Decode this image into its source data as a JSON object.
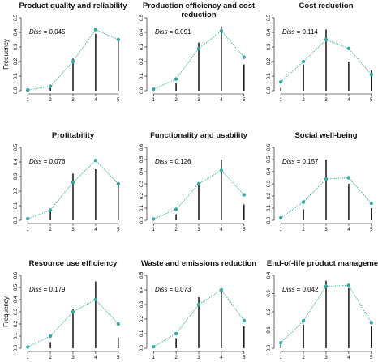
{
  "chart_data": [
    {
      "type": "line",
      "title": "Product quality and reliability",
      "ylabel": "Frequency",
      "annotation_label": "Diss",
      "annotation": "= 0.045",
      "x": [
        1,
        2,
        3,
        4,
        5
      ],
      "xlim": [
        0.85,
        5.15
      ],
      "xticks": [
        1,
        2,
        3,
        4,
        5
      ],
      "ylim": [
        0,
        0.5
      ],
      "yticks": [
        {
          "value": 0,
          "label": "0.0"
        },
        0.1,
        0.2,
        0.3,
        0.4,
        0.5
      ],
      "series": [
        {
          "mark": "spike",
          "color": "#000000",
          "values": [
            0,
            0.02,
            0.22,
            0.39,
            0.36
          ]
        },
        {
          "mark": "dotted-line",
          "color": "#36a89c",
          "values": [
            0.005,
            0.03,
            0.2,
            0.42,
            0.35
          ]
        }
      ]
    },
    {
      "type": "line",
      "title": "Production efficiency and cost reduction",
      "annotation_label": "Diss",
      "annotation": "= 0.091",
      "x": [
        1,
        2,
        3,
        4,
        5
      ],
      "xlim": [
        0.85,
        5.15
      ],
      "xticks": [
        1,
        2,
        3,
        4,
        5
      ],
      "ylim": [
        0,
        0.5
      ],
      "yticks": [
        {
          "value": 0,
          "label": "0.0"
        },
        0.1,
        0.2,
        0.3,
        0.4,
        0.5
      ],
      "series": [
        {
          "mark": "spike",
          "color": "#000000",
          "values": [
            0,
            0.05,
            0.33,
            0.44,
            0.18
          ]
        },
        {
          "mark": "dotted-line",
          "color": "#36a89c",
          "values": [
            0.01,
            0.08,
            0.29,
            0.41,
            0.23
          ]
        }
      ]
    },
    {
      "type": "line",
      "title": "Cost reduction",
      "annotation_label": "Diss",
      "annotation": "= 0.114",
      "x": [
        1,
        2,
        3,
        4,
        5
      ],
      "xlim": [
        0.85,
        5.15
      ],
      "xticks": [
        1,
        2,
        3,
        4,
        5
      ],
      "ylim": [
        0,
        0.5
      ],
      "yticks": [
        {
          "value": 0,
          "label": "0.0"
        },
        0.1,
        0.2,
        0.3,
        0.4,
        0.5
      ],
      "series": [
        {
          "mark": "spike",
          "color": "#000000",
          "values": [
            0.02,
            0.18,
            0.42,
            0.2,
            0.14
          ]
        },
        {
          "mark": "dotted-line",
          "color": "#36a89c",
          "values": [
            0.06,
            0.2,
            0.35,
            0.29,
            0.11
          ]
        }
      ]
    },
    {
      "type": "line",
      "title": "Profitability",
      "annotation_label": "Diss",
      "annotation": "= 0.076",
      "x": [
        1,
        2,
        3,
        4,
        5
      ],
      "xlim": [
        0.85,
        5.15
      ],
      "xticks": [
        1,
        2,
        3,
        4,
        5
      ],
      "ylim": [
        0,
        0.5
      ],
      "yticks": [
        {
          "value": 0,
          "label": "0.0"
        },
        0.1,
        0.2,
        0.3,
        0.4,
        0.5
      ],
      "series": [
        {
          "mark": "spike",
          "color": "#000000",
          "values": [
            0.02,
            0.06,
            0.32,
            0.35,
            0.24
          ]
        },
        {
          "mark": "dotted-line",
          "color": "#36a89c",
          "values": [
            0.01,
            0.07,
            0.26,
            0.41,
            0.25
          ]
        }
      ]
    },
    {
      "type": "line",
      "title": "Functionality and usability",
      "annotation_label": "Diss",
      "annotation": "= 0.126",
      "x": [
        1,
        2,
        3,
        4,
        5
      ],
      "xlim": [
        0.85,
        5.15
      ],
      "xticks": [
        1,
        2,
        3,
        4,
        5
      ],
      "ylim": [
        0,
        0.6
      ],
      "yticks": [
        {
          "value": 0,
          "label": "0.0"
        },
        0.1,
        0.2,
        0.3,
        0.4,
        0.5,
        0.6
      ],
      "series": [
        {
          "mark": "spike",
          "color": "#000000",
          "values": [
            0,
            0.05,
            0.29,
            0.5,
            0.13
          ]
        },
        {
          "mark": "dotted-line",
          "color": "#36a89c",
          "values": [
            0.01,
            0.09,
            0.3,
            0.41,
            0.21
          ]
        }
      ]
    },
    {
      "type": "line",
      "title": "Social well-being",
      "annotation_label": "Diss",
      "annotation": "= 0.157",
      "x": [
        1,
        2,
        3,
        4,
        5
      ],
      "xlim": [
        0.85,
        5.15
      ],
      "xticks": [
        1,
        2,
        3,
        4,
        5
      ],
      "ylim": [
        0,
        0.6
      ],
      "yticks": [
        {
          "value": 0,
          "label": "0.0"
        },
        0.1,
        0.2,
        0.3,
        0.4,
        0.5,
        0.6
      ],
      "series": [
        {
          "mark": "spike",
          "color": "#000000",
          "values": [
            0,
            0.09,
            0.5,
            0.3,
            0.1
          ]
        },
        {
          "mark": "dotted-line",
          "color": "#36a89c",
          "values": [
            0.02,
            0.15,
            0.34,
            0.35,
            0.14
          ]
        }
      ]
    },
    {
      "type": "line",
      "title": "Resource use efficiency",
      "ylabel": "Frequency",
      "annotation_label": "Diss",
      "annotation": "= 0.179",
      "x": [
        1,
        2,
        3,
        4,
        5
      ],
      "xlim": [
        0.85,
        5.15
      ],
      "xticks": [
        1,
        2,
        3,
        4,
        5
      ],
      "ylim": [
        0,
        0.6
      ],
      "yticks": [
        {
          "value": 0,
          "label": "0.0"
        },
        0.1,
        0.2,
        0.3,
        0.4,
        0.5,
        0.6
      ],
      "series": [
        {
          "mark": "spike",
          "color": "#000000",
          "values": [
            0,
            0.05,
            0.32,
            0.55,
            0.09
          ]
        },
        {
          "mark": "dotted-line",
          "color": "#36a89c",
          "values": [
            0.01,
            0.1,
            0.3,
            0.4,
            0.2
          ]
        }
      ]
    },
    {
      "type": "line",
      "title": "Waste and emissions reduction",
      "annotation_label": "Diss",
      "annotation": "= 0.073",
      "x": [
        1,
        2,
        3,
        4,
        5
      ],
      "xlim": [
        0.85,
        5.15
      ],
      "xticks": [
        1,
        2,
        3,
        4,
        5
      ],
      "ylim": [
        0,
        0.5
      ],
      "yticks": [
        {
          "value": 0,
          "label": "0.0"
        },
        0.1,
        0.2,
        0.3,
        0.4,
        0.5
      ],
      "series": [
        {
          "mark": "spike",
          "color": "#000000",
          "values": [
            0,
            0.07,
            0.35,
            0.4,
            0.15
          ]
        },
        {
          "mark": "dotted-line",
          "color": "#36a89c",
          "values": [
            0.01,
            0.1,
            0.3,
            0.4,
            0.19
          ]
        }
      ]
    },
    {
      "type": "line",
      "title": "End-of-life product management",
      "annotation_label": "Diss",
      "annotation": "= 0.042",
      "x": [
        1,
        2,
        3,
        4,
        5
      ],
      "xlim": [
        0.85,
        5.15
      ],
      "xticks": [
        1,
        2,
        3,
        4,
        5
      ],
      "ylim": [
        0,
        0.4
      ],
      "yticks": [
        {
          "value": 0,
          "label": "0.0"
        },
        0.1,
        0.2,
        0.3,
        0.4
      ],
      "series": [
        {
          "mark": "spike",
          "color": "#000000",
          "values": [
            0.02,
            0.13,
            0.37,
            0.33,
            0.12
          ]
        },
        {
          "mark": "dotted-line",
          "color": "#36a89c",
          "values": [
            0.03,
            0.15,
            0.34,
            0.345,
            0.14
          ]
        }
      ]
    }
  ]
}
